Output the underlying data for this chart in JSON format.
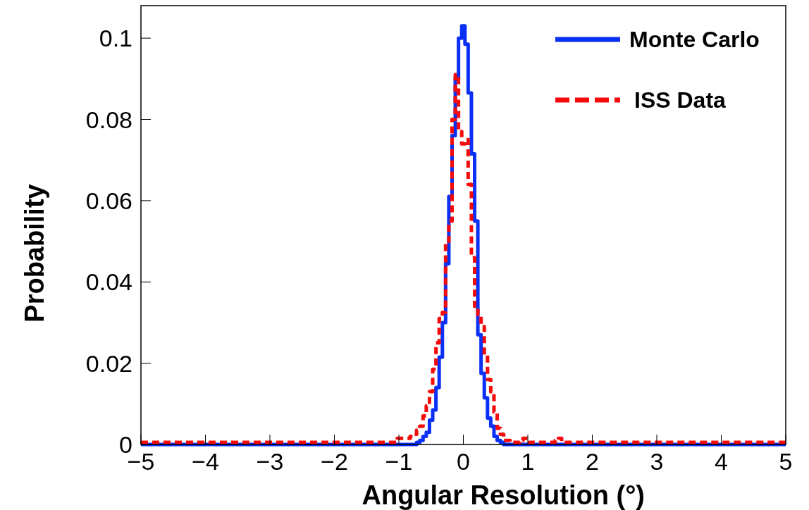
{
  "chart_data": {
    "type": "histogram",
    "xlabel": "Angular Resolution (°)",
    "ylabel": "Probability",
    "bins": [
      -5,
      -1.525,
      -1.475,
      -1.425,
      -1.375,
      -1.325,
      -1.275,
      -1.225,
      -1.175,
      -1.125,
      -1.075,
      -1.025,
      -0.975,
      -0.925,
      -0.875,
      -0.825,
      -0.775,
      -0.725,
      -0.675,
      -0.625,
      -0.575,
      -0.525,
      -0.475,
      -0.425,
      -0.375,
      -0.325,
      -0.275,
      -0.225,
      -0.175,
      -0.125,
      -0.075,
      -0.025,
      0.025,
      0.075,
      0.125,
      0.175,
      0.225,
      0.275,
      0.325,
      0.375,
      0.425,
      0.475,
      0.525,
      0.575,
      0.625,
      0.675,
      0.725,
      0.775,
      0.825,
      0.875,
      0.925,
      0.975,
      1.025,
      1.075,
      1.125,
      1.175,
      1.225,
      1.275,
      1.325,
      1.375,
      1.425,
      1.475,
      1.525,
      5
    ],
    "series": [
      {
        "name": "Monte Carlo",
        "color": "#0a2ff5",
        "line_style": "solid",
        "values": [
          0,
          0,
          0,
          0,
          0,
          0,
          0,
          0,
          0,
          0,
          0,
          0,
          0,
          0,
          0,
          0,
          0,
          0.0005,
          0.001,
          0.002,
          0.003,
          0.006,
          0.0085,
          0.014,
          0.0215,
          0.03,
          0.0445,
          0.061,
          0.076,
          0.09,
          0.1,
          0.103,
          0.0985,
          0.0865,
          0.0715,
          0.055,
          0.027,
          0.0175,
          0.0115,
          0.0065,
          0.0045,
          0.002,
          0.001,
          0.0005,
          0,
          0,
          0,
          0,
          0,
          0,
          0,
          0,
          0,
          0,
          0,
          0,
          0,
          0,
          0,
          0,
          0,
          0,
          0
        ]
      },
      {
        "name": "ISS Data",
        "color": "#f50a0a",
        "line_style": "dashed",
        "values": [
          0.0005,
          0.0005,
          0.0005,
          0.0005,
          0.0005,
          0.0005,
          0.0005,
          0.0005,
          0.0005,
          0.0005,
          0.0005,
          0.0015,
          0.0015,
          0.0015,
          0.0015,
          0.002,
          0.0025,
          0.0035,
          0.0045,
          0.007,
          0.0095,
          0.013,
          0.0185,
          0.025,
          0.031,
          0.0325,
          0.05,
          0.055,
          0.08,
          0.091,
          0.077,
          0.074,
          0.075,
          0.064,
          0.046,
          0.034,
          0.032,
          0.029,
          0.022,
          0.016,
          0.013,
          0.008,
          0.004,
          0.0025,
          0.001,
          0.001,
          0.0005,
          0.0005,
          0.0005,
          0.001,
          0.0015,
          0.0015,
          0.0005,
          0.0005,
          0.0005,
          0.0005,
          0.0005,
          0.0005,
          0.0005,
          0.0005,
          0.001,
          0.0015,
          0.0005
        ]
      }
    ],
    "xlim": [
      -5,
      5
    ],
    "xticks": [
      {
        "value": -5,
        "label": "−5"
      },
      {
        "value": -4,
        "label": "−4"
      },
      {
        "value": -3,
        "label": "−3"
      },
      {
        "value": -2,
        "label": "−2"
      },
      {
        "value": -1,
        "label": "−1"
      },
      0,
      1,
      2,
      3,
      4,
      5
    ],
    "ylim": [
      0,
      0.108
    ],
    "yticks": [
      0,
      0.02,
      0.04,
      0.06,
      0.08,
      0.1
    ],
    "legend": "top right"
  }
}
